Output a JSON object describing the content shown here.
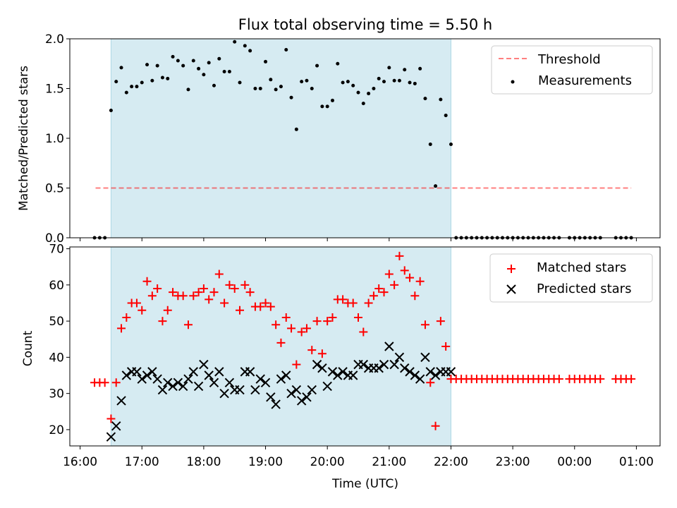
{
  "title": "Flux total observing time = 5.50 h",
  "xlabel": "Time (UTC)",
  "xticks": [
    "16:00",
    "17:00",
    "18:00",
    "19:00",
    "20:00",
    "21:00",
    "22:00",
    "23:00",
    "00:00",
    "01:00"
  ],
  "colors": {
    "shade": "#add8e6",
    "threshold": "#ff0000",
    "matched": "#ff0000",
    "predicted": "#000000",
    "measurements": "#000000"
  },
  "chart_data": [
    {
      "type": "scatter",
      "ylabel": "Matched/Predicted stars",
      "ylim": [
        0,
        2.0
      ],
      "yticks": [
        "0.0",
        "0.5",
        "1.0",
        "1.5",
        "2.0"
      ],
      "xlim": [
        "15:50",
        "01:23"
      ],
      "observing_window": [
        "16:30",
        "22:00"
      ],
      "legend": {
        "position": "top-right",
        "entries": [
          "Threshold",
          "Measurements"
        ]
      },
      "threshold": {
        "name": "Threshold",
        "y": 0.5,
        "x_range": [
          "16:15",
          "00:55"
        ]
      },
      "series": [
        {
          "name": "Measurements",
          "x": [
            "16:14",
            "16:19",
            "16:24",
            "16:30",
            "16:35",
            "16:40",
            "16:45",
            "16:50",
            "16:55",
            "17:00",
            "17:05",
            "17:10",
            "17:15",
            "17:20",
            "17:25",
            "17:30",
            "17:35",
            "17:40",
            "17:45",
            "17:50",
            "17:55",
            "18:00",
            "18:05",
            "18:10",
            "18:15",
            "18:20",
            "18:25",
            "18:30",
            "18:35",
            "18:40",
            "18:45",
            "18:50",
            "18:55",
            "19:00",
            "19:05",
            "19:10",
            "19:15",
            "19:20",
            "19:25",
            "19:30",
            "19:35",
            "19:40",
            "19:45",
            "19:50",
            "19:55",
            "20:00",
            "20:05",
            "20:10",
            "20:15",
            "20:20",
            "20:25",
            "20:30",
            "20:35",
            "20:40",
            "20:45",
            "20:50",
            "20:55",
            "21:00",
            "21:05",
            "21:10",
            "21:15",
            "21:20",
            "21:25",
            "21:30",
            "21:35",
            "21:40",
            "21:45",
            "21:50",
            "21:55",
            "22:00",
            "22:05",
            "22:10",
            "22:15",
            "22:20",
            "22:25",
            "22:30",
            "22:35",
            "22:40",
            "22:45",
            "22:50",
            "22:55",
            "23:00",
            "23:05",
            "23:10",
            "23:15",
            "23:20",
            "23:25",
            "23:30",
            "23:35",
            "23:40",
            "23:45",
            "23:55",
            "00:00",
            "00:05",
            "00:10",
            "00:15",
            "00:20",
            "00:25",
            "00:40",
            "00:45",
            "00:50",
            "00:55"
          ],
          "y": [
            0,
            0,
            0,
            1.28,
            1.57,
            1.71,
            1.46,
            1.52,
            1.52,
            1.56,
            1.74,
            1.58,
            1.73,
            1.61,
            1.6,
            1.82,
            1.78,
            1.73,
            1.49,
            1.78,
            1.7,
            1.64,
            1.76,
            1.53,
            1.8,
            1.67,
            1.67,
            1.97,
            1.56,
            1.93,
            1.88,
            1.5,
            1.5,
            1.77,
            1.59,
            1.49,
            1.52,
            1.89,
            1.41,
            1.09,
            1.57,
            1.58,
            1.5,
            1.73,
            1.32,
            1.32,
            1.38,
            1.75,
            1.56,
            1.57,
            1.53,
            1.46,
            1.35,
            1.45,
            1.5,
            1.6,
            1.57,
            1.71,
            1.58,
            1.58,
            1.69,
            1.56,
            1.55,
            1.7,
            1.4,
            0.94,
            0.52,
            1.39,
            1.23,
            0.94,
            0,
            0,
            0,
            0,
            0,
            0,
            0,
            0,
            0,
            0,
            0,
            0,
            0,
            0,
            0,
            0,
            0,
            0,
            0,
            0,
            0,
            0,
            0,
            0,
            0,
            0,
            0,
            0,
            0,
            0,
            0,
            0
          ]
        }
      ]
    },
    {
      "type": "scatter",
      "ylabel": "Count",
      "ylim": [
        15.5,
        70.5
      ],
      "yticks": [
        "20",
        "30",
        "40",
        "50",
        "60",
        "70"
      ],
      "xlim": [
        "15:50",
        "01:23"
      ],
      "observing_window": [
        "16:30",
        "22:00"
      ],
      "legend": {
        "position": "top-right",
        "entries": [
          "Matched stars",
          "Predicted stars"
        ]
      },
      "series": [
        {
          "name": "Matched stars",
          "x": [
            "16:14",
            "16:19",
            "16:24",
            "16:30",
            "16:35",
            "16:40",
            "16:45",
            "16:50",
            "16:55",
            "17:00",
            "17:05",
            "17:10",
            "17:15",
            "17:20",
            "17:25",
            "17:30",
            "17:35",
            "17:40",
            "17:45",
            "17:50",
            "17:55",
            "18:00",
            "18:05",
            "18:10",
            "18:15",
            "18:20",
            "18:25",
            "18:30",
            "18:35",
            "18:40",
            "18:45",
            "18:50",
            "18:55",
            "19:00",
            "19:05",
            "19:10",
            "19:15",
            "19:20",
            "19:25",
            "19:30",
            "19:35",
            "19:40",
            "19:45",
            "19:50",
            "19:55",
            "20:00",
            "20:05",
            "20:10",
            "20:15",
            "20:20",
            "20:25",
            "20:30",
            "20:35",
            "20:40",
            "20:45",
            "20:50",
            "20:55",
            "21:00",
            "21:05",
            "21:10",
            "21:15",
            "21:20",
            "21:25",
            "21:30",
            "21:35",
            "21:40",
            "21:45",
            "21:50",
            "21:55",
            "22:00",
            "22:05",
            "22:10",
            "22:15",
            "22:20",
            "22:25",
            "22:30",
            "22:35",
            "22:40",
            "22:45",
            "22:50",
            "22:55",
            "23:00",
            "23:05",
            "23:10",
            "23:15",
            "23:20",
            "23:25",
            "23:30",
            "23:35",
            "23:40",
            "23:45",
            "23:55",
            "00:00",
            "00:05",
            "00:10",
            "00:15",
            "00:20",
            "00:25",
            "00:40",
            "00:45",
            "00:50",
            "00:55"
          ],
          "y": [
            33,
            33,
            33,
            23,
            33,
            48,
            51,
            55,
            55,
            53,
            61,
            57,
            59,
            50,
            53,
            58,
            57,
            57,
            49,
            57,
            58,
            59,
            56,
            58,
            63,
            55,
            60,
            59,
            53,
            60,
            58,
            54,
            54,
            55,
            54,
            49,
            44,
            51,
            48,
            38,
            47,
            48,
            42,
            50,
            41,
            50,
            51,
            56,
            56,
            55,
            55,
            51,
            47,
            55,
            57,
            59,
            58,
            63,
            60,
            68,
            64,
            62,
            57,
            61,
            49,
            33,
            21,
            50,
            43,
            34,
            34,
            34,
            34,
            34,
            34,
            34,
            34,
            34,
            34,
            34,
            34,
            34,
            34,
            34,
            34,
            34,
            34,
            34,
            34,
            34,
            34,
            34,
            34,
            34,
            34,
            34,
            34,
            34,
            34,
            34,
            34,
            34
          ]
        },
        {
          "name": "Predicted stars",
          "x": [
            "16:30",
            "16:35",
            "16:40",
            "16:45",
            "16:50",
            "16:55",
            "17:00",
            "17:05",
            "17:10",
            "17:15",
            "17:20",
            "17:25",
            "17:30",
            "17:35",
            "17:40",
            "17:45",
            "17:50",
            "17:55",
            "18:00",
            "18:05",
            "18:10",
            "18:15",
            "18:20",
            "18:25",
            "18:30",
            "18:35",
            "18:40",
            "18:45",
            "18:50",
            "18:55",
            "19:00",
            "19:05",
            "19:10",
            "19:15",
            "19:20",
            "19:25",
            "19:30",
            "19:35",
            "19:40",
            "19:45",
            "19:50",
            "19:55",
            "20:00",
            "20:05",
            "20:10",
            "20:15",
            "20:20",
            "20:25",
            "20:30",
            "20:35",
            "20:40",
            "20:45",
            "20:50",
            "20:55",
            "21:00",
            "21:05",
            "21:10",
            "21:15",
            "21:20",
            "21:25",
            "21:30",
            "21:35",
            "21:40",
            "21:45",
            "21:50",
            "21:55",
            "22:00"
          ],
          "y": [
            18,
            21,
            28,
            35,
            36,
            36,
            34,
            35,
            36,
            34,
            31,
            33,
            32,
            33,
            32,
            34,
            36,
            32,
            38,
            35,
            33,
            36,
            30,
            33,
            31,
            31,
            36,
            36,
            31,
            34,
            33,
            29,
            27,
            34,
            35,
            30,
            31,
            28,
            29,
            31,
            38,
            37,
            32,
            36,
            35,
            36,
            35,
            35,
            38,
            38,
            37,
            37,
            37,
            38,
            43,
            38,
            40,
            37,
            36,
            35,
            34,
            40,
            36,
            35,
            36,
            36,
            36
          ]
        }
      ]
    }
  ]
}
